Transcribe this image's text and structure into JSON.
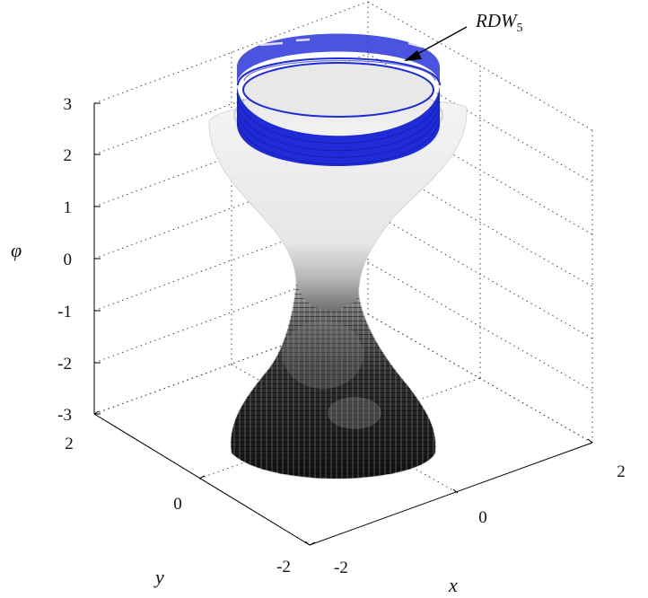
{
  "figure": {
    "z_axis_label": "φ",
    "x_axis_label": "x",
    "y_axis_label": "y",
    "annotation_base": "RDW",
    "annotation_subscript": "5"
  },
  "z_ticks": [
    "3",
    "2",
    "1",
    "0",
    "-1",
    "-2",
    "-3"
  ],
  "x_ticks": [
    "-2",
    "0",
    "2"
  ],
  "y_ticks": [
    "2",
    "0",
    "-2"
  ],
  "colors": {
    "ring": "#1f2bd6",
    "upper_surface": "#f2f2f2",
    "lower_surface": "#1a1a1a",
    "grid": "#444444"
  }
}
